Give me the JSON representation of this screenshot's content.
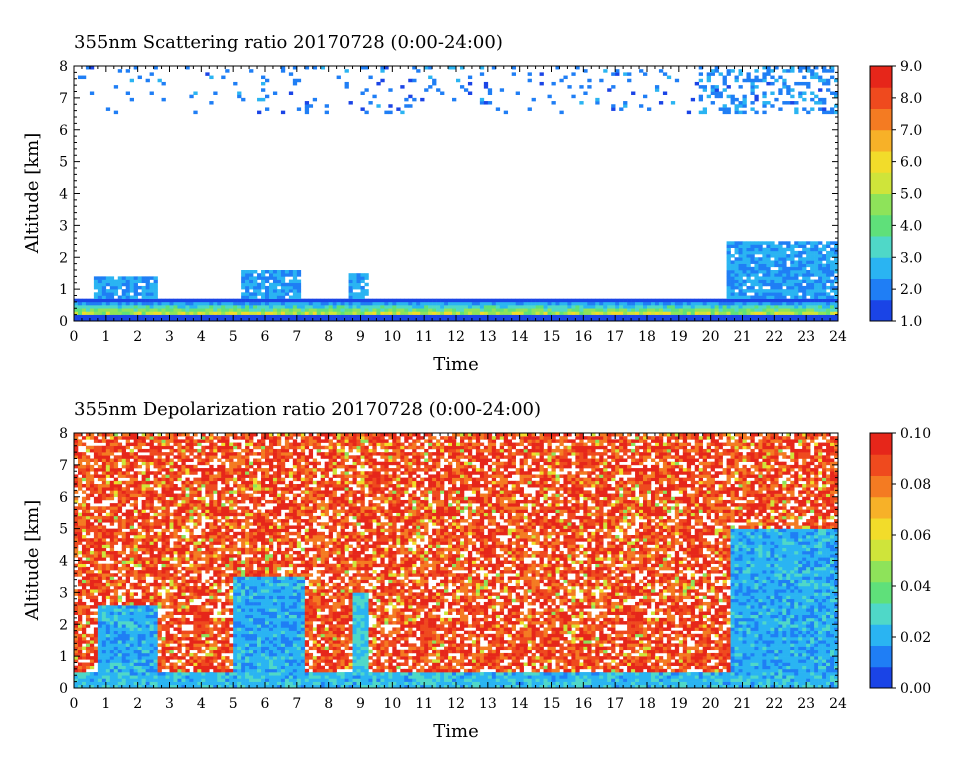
{
  "colors": {
    "colormap": [
      "#1a44e6",
      "#1f7ef5",
      "#2ab4f2",
      "#4fd8c8",
      "#5fe07a",
      "#8ee35a",
      "#cfe43a",
      "#f2dc2a",
      "#f7b128",
      "#f47b22",
      "#ef4a1e",
      "#e6261a"
    ]
  },
  "chart_data": [
    {
      "type": "heatmap",
      "title": "355nm Scattering ratio  20170728 (0:00-24:00)",
      "xlabel": "Time",
      "ylabel": "Altitude [km]",
      "xlim": [
        0,
        24
      ],
      "ylim": [
        0,
        8
      ],
      "xticks": [
        "0",
        "1",
        "2",
        "3",
        "4",
        "5",
        "6",
        "7",
        "8",
        "9",
        "10",
        "11",
        "12",
        "13",
        "14",
        "15",
        "16",
        "17",
        "18",
        "19",
        "20",
        "21",
        "22",
        "23",
        "24"
      ],
      "yticks": [
        "0",
        "1",
        "2",
        "3",
        "4",
        "5",
        "6",
        "7",
        "8"
      ],
      "colorbar": {
        "range": [
          1.0,
          9.0
        ],
        "ticks": [
          "1.0",
          "2.0",
          "3.0",
          "4.0",
          "5.0",
          "6.0",
          "7.0",
          "8.0",
          "9.0"
        ]
      },
      "features": {
        "surface_layer_top_km": 0.7,
        "low_cloud_regions": [
          {
            "t": [
              0.6,
              2.6
            ],
            "z": [
              0.4,
              1.4
            ],
            "level": 2.0
          },
          {
            "t": [
              5.2,
              7.1
            ],
            "z": [
              0.4,
              1.6
            ],
            "level": 2.0
          },
          {
            "t": [
              8.6,
              9.3
            ],
            "z": [
              0.4,
              1.5
            ],
            "level": 2.2
          },
          {
            "t": [
              20.5,
              24.0
            ],
            "z": [
              0.5,
              2.5
            ],
            "level": 2.0
          }
        ],
        "high_sparse_region_km": [
          6.5,
          8.0
        ]
      }
    },
    {
      "type": "heatmap",
      "title": "355nm Depolarization ratio  20170728 (0:00-24:00)",
      "xlabel": "Time",
      "ylabel": "Altitude [km]",
      "xlim": [
        0,
        24
      ],
      "ylim": [
        0,
        8
      ],
      "xticks": [
        "0",
        "1",
        "2",
        "3",
        "4",
        "5",
        "6",
        "7",
        "8",
        "9",
        "10",
        "11",
        "12",
        "13",
        "14",
        "15",
        "16",
        "17",
        "18",
        "19",
        "20",
        "21",
        "22",
        "23",
        "24"
      ],
      "yticks": [
        "0",
        "1",
        "2",
        "3",
        "4",
        "5",
        "6",
        "7",
        "8"
      ],
      "colorbar": {
        "range": [
          0.0,
          0.1
        ],
        "ticks": [
          "0.00",
          "0.02",
          "0.04",
          "0.06",
          "0.08",
          "0.10"
        ]
      },
      "features": {
        "low_depol_regions": [
          {
            "t": [
              0.8,
              2.6
            ],
            "z": [
              0.2,
              2.6
            ],
            "level": 0.02
          },
          {
            "t": [
              5.0,
              7.2
            ],
            "z": [
              0.2,
              3.5
            ],
            "level": 0.02
          },
          {
            "t": [
              8.7,
              9.3
            ],
            "z": [
              0.2,
              3.0
            ],
            "level": 0.025
          },
          {
            "t": [
              20.6,
              24.0
            ],
            "z": [
              0.2,
              5.0
            ],
            "level": 0.02
          }
        ]
      }
    }
  ]
}
